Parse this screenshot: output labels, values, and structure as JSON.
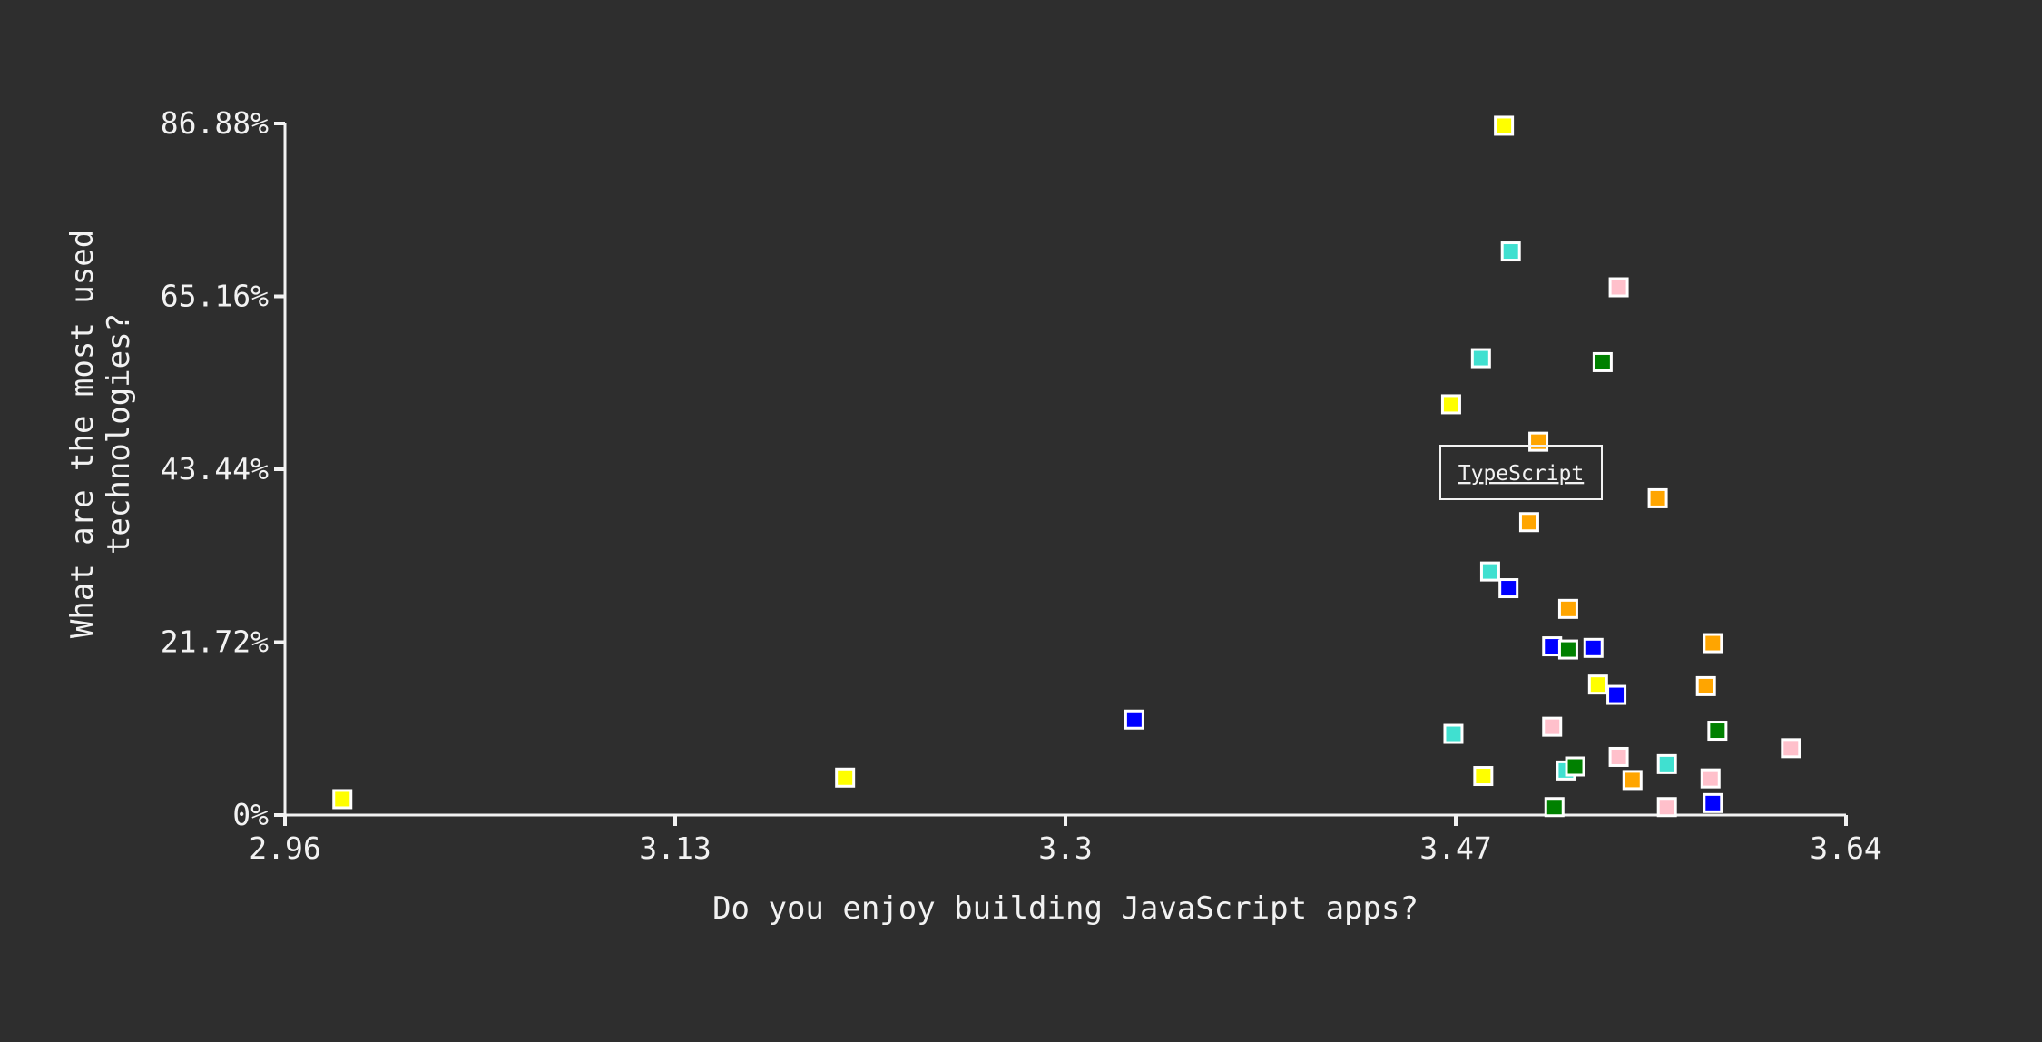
{
  "colors": {
    "background": "#2e2e2e",
    "axis": "#f2f2f2",
    "marker_border": "#ffffff",
    "tooltip_border": "#f2f2f2",
    "series_colors": {
      "yellow": "#ffff00",
      "turquoise": "#40e0d0",
      "pink": "#ffc0cb",
      "green": "#008000",
      "orange": "#ffa500",
      "blue": "#0000ff"
    }
  },
  "tooltip": {
    "label": "TypeScript"
  },
  "chart_data": {
    "type": "scatter",
    "title": "",
    "xlabel": "Do you enjoy building JavaScript apps?",
    "ylabel_lines": [
      "What are the most used",
      "technologies?"
    ],
    "xlim": [
      2.96,
      3.64
    ],
    "ylim": [
      0,
      86.88
    ],
    "x_ticks": [
      "2.96",
      "3.13",
      "3.3",
      "3.47",
      "3.64"
    ],
    "x_tick_values": [
      2.96,
      3.13,
      3.3,
      3.47,
      3.64
    ],
    "y_ticks": [
      "0%",
      "21.72%",
      "43.44%",
      "65.16%",
      "86.88%"
    ],
    "y_tick_values": [
      0,
      21.72,
      43.44,
      65.16,
      86.88
    ],
    "grid": false,
    "legend": "none",
    "points": [
      {
        "x": 2.985,
        "y": 2.0,
        "color": "yellow"
      },
      {
        "x": 3.204,
        "y": 4.7,
        "color": "yellow"
      },
      {
        "x": 3.33,
        "y": 12.0,
        "color": "blue"
      },
      {
        "x": 3.468,
        "y": 51.6,
        "color": "yellow"
      },
      {
        "x": 3.469,
        "y": 10.2,
        "color": "turquoise"
      },
      {
        "x": 3.482,
        "y": 4.9,
        "color": "yellow"
      },
      {
        "x": 3.481,
        "y": 57.4,
        "color": "turquoise"
      },
      {
        "x": 3.485,
        "y": 30.6,
        "color": "turquoise"
      },
      {
        "x": 3.491,
        "y": 86.6,
        "color": "yellow"
      },
      {
        "x": 3.493,
        "y": 28.5,
        "color": "blue"
      },
      {
        "x": 3.494,
        "y": 70.8,
        "color": "turquoise"
      },
      {
        "x": 3.502,
        "y": 36.8,
        "color": "orange"
      },
      {
        "x": 3.506,
        "y": 46.9,
        "color": "orange"
      },
      {
        "x": 3.512,
        "y": 21.2,
        "color": "blue"
      },
      {
        "x": 3.512,
        "y": 11.1,
        "color": "pink"
      },
      {
        "x": 3.513,
        "y": 1.0,
        "color": "green"
      },
      {
        "x": 3.519,
        "y": 20.8,
        "color": "green"
      },
      {
        "x": 3.518,
        "y": 5.6,
        "color": "turquoise"
      },
      {
        "x": 3.519,
        "y": 25.9,
        "color": "orange"
      },
      {
        "x": 3.522,
        "y": 6.1,
        "color": "green"
      },
      {
        "x": 3.53,
        "y": 21.0,
        "color": "blue"
      },
      {
        "x": 3.532,
        "y": 16.4,
        "color": "yellow"
      },
      {
        "x": 3.534,
        "y": 56.9,
        "color": "green"
      },
      {
        "x": 3.54,
        "y": 15.1,
        "color": "blue"
      },
      {
        "x": 3.541,
        "y": 66.3,
        "color": "pink"
      },
      {
        "x": 3.541,
        "y": 7.3,
        "color": "pink"
      },
      {
        "x": 3.547,
        "y": 4.4,
        "color": "orange"
      },
      {
        "x": 3.558,
        "y": 39.8,
        "color": "orange"
      },
      {
        "x": 3.562,
        "y": 6.4,
        "color": "turquoise"
      },
      {
        "x": 3.562,
        "y": 1.0,
        "color": "pink"
      },
      {
        "x": 3.579,
        "y": 16.2,
        "color": "orange"
      },
      {
        "x": 3.581,
        "y": 4.6,
        "color": "pink"
      },
      {
        "x": 3.582,
        "y": 21.6,
        "color": "orange"
      },
      {
        "x": 3.582,
        "y": 1.5,
        "color": "blue"
      },
      {
        "x": 3.584,
        "y": 10.6,
        "color": "green"
      },
      {
        "x": 3.616,
        "y": 8.4,
        "color": "pink"
      }
    ]
  }
}
